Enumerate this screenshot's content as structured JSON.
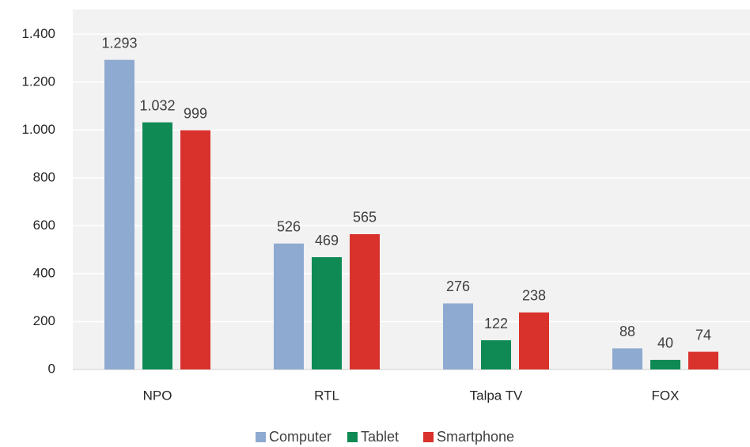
{
  "chart_data": {
    "type": "bar",
    "categories": [
      "NPO",
      "RTL",
      "Talpa TV",
      "FOX"
    ],
    "series": [
      {
        "name": "Computer",
        "color": "#8eaad0",
        "values": [
          1293,
          526,
          276,
          88
        ],
        "value_labels": [
          "1.293",
          "526",
          "276",
          "88"
        ]
      },
      {
        "name": "Tablet",
        "color": "#0f8a55",
        "values": [
          1032,
          469,
          122,
          40
        ],
        "value_labels": [
          "1.032",
          "469",
          "122",
          "40"
        ]
      },
      {
        "name": "Smartphone",
        "color": "#d9312c",
        "values": [
          999,
          565,
          238,
          74
        ],
        "value_labels": [
          "999",
          "565",
          "238",
          "74"
        ]
      }
    ],
    "ylim": [
      0,
      1500
    ],
    "yticks": [
      0,
      200,
      400,
      600,
      800,
      {
        "value": 1000,
        "label": "1.000"
      },
      {
        "value": 1200,
        "label": "1.200"
      },
      {
        "value": 1400,
        "label": "1.400"
      }
    ],
    "grid": true,
    "legend": "bottom"
  }
}
